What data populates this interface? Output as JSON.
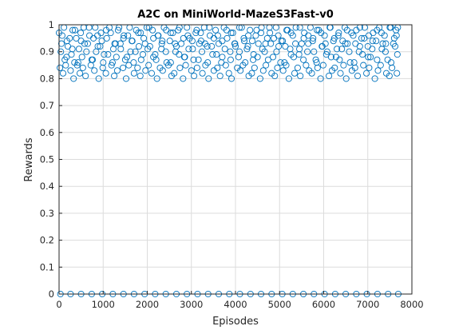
{
  "chart_data": {
    "type": "scatter",
    "title": "A2C on MiniWorld-MazeS3Fast-v0",
    "xlabel": "Episodes",
    "ylabel": "Rewards",
    "xlim": [
      0,
      8000
    ],
    "ylim": [
      0,
      1
    ],
    "xticks": [
      0,
      1000,
      2000,
      3000,
      4000,
      5000,
      6000,
      7000,
      8000
    ],
    "xtick_labels": [
      "0",
      "1000",
      "2000",
      "3000",
      "4000",
      "5000",
      "6000",
      "7000",
      "8000"
    ],
    "yticks": [
      0,
      0.1,
      0.2,
      0.3,
      0.4,
      0.5,
      0.6,
      0.7,
      0.8,
      0.9,
      1
    ],
    "ytick_labels": [
      "0",
      "0.1",
      "0.2",
      "0.3",
      "0.4",
      "0.5",
      "0.6",
      "0.7",
      "0.8",
      "0.9",
      "1"
    ],
    "grid": true,
    "marker": "circle-open",
    "color": "#0072bd",
    "series": [
      {
        "x": [
          0,
          55,
          110,
          170,
          240,
          300,
          360,
          430,
          500,
          560,
          620,
          690,
          760,
          820,
          880,
          950,
          1020,
          1080,
          1140,
          1210,
          1280,
          1340,
          1400,
          1470,
          1540,
          1600,
          1660,
          1730,
          1800,
          1860,
          1920,
          1990,
          2060,
          2120,
          2180,
          2250,
          2320,
          2380,
          2440,
          2510,
          2580,
          2640,
          2700,
          2770,
          2840,
          2900,
          2960,
          3030,
          3100,
          3160,
          3220,
          3290,
          3360,
          3420,
          3480,
          3550,
          3620,
          3680,
          3740,
          3810,
          3880,
          3940,
          4000,
          4070,
          4140,
          4200,
          4260,
          4330,
          4400,
          4460,
          4520,
          4590,
          4660,
          4720,
          4780,
          4850,
          4920,
          4980,
          5040,
          5110,
          5180,
          5240,
          5300,
          5370,
          5440,
          5500,
          5560,
          5630,
          5700,
          5760,
          5820,
          5890,
          5960,
          6020,
          6080,
          6150,
          6220,
          6280,
          6340,
          6410,
          6480,
          6540,
          6600,
          6670,
          6740,
          6800,
          6860,
          6930,
          7000,
          7060,
          7120,
          7190,
          7260,
          7320,
          7380,
          7450,
          7520,
          7580,
          7640,
          7680,
          20,
          90,
          150,
          260,
          330,
          410,
          470,
          540,
          600,
          720,
          800,
          900,
          990,
          1060,
          1190,
          1250,
          1320,
          1450,
          1520,
          1580,
          1700,
          1780,
          1840,
          1960,
          2030,
          2100,
          2220,
          2290,
          2350,
          2480,
          2550,
          2610,
          2740,
          2810,
          2870,
          3000,
          3060,
          3130,
          3250,
          3320,
          3390,
          3510,
          3590,
          3650,
          3780,
          3850,
          3910,
          4040,
          4110,
          4170,
          4300,
          4370,
          4430,
          4560,
          4630,
          4690,
          4820,
          4890,
          4950,
          5080,
          5150,
          5210,
          5340,
          5410,
          5470,
          5600,
          5670,
          5730,
          5860,
          5930,
          5990,
          6120,
          6190,
          6250,
          6380,
          6450,
          6510,
          6640,
          6710,
          6770,
          6900,
          6970,
          7030,
          7160,
          7230,
          7290,
          7420,
          7490,
          7550,
          7660,
          40,
          130,
          200,
          280,
          350,
          450,
          520,
          650,
          740,
          840,
          930,
          1000,
          1110,
          1230,
          1300,
          1390,
          1500,
          1620,
          1690,
          1810,
          1900,
          2010,
          2140,
          2200,
          2330,
          2420,
          2530,
          2660,
          2720,
          2850,
          2940,
          3050,
          3180,
          3240,
          3370,
          3460,
          3570,
          3700,
          3760,
          3890,
          3980,
          4090,
          4220,
          4280,
          4410,
          4500,
          4610,
          4740,
          4800,
          4930,
          5020,
          5130,
          5260,
          5320,
          5450,
          5540,
          5650,
          5780,
          5840,
          5970,
          6060,
          6170,
          6300,
          6360,
          6490,
          6580,
          6690,
          6820,
          6880,
          7010,
          7100,
          7210,
          7340,
          7400,
          7530,
          7620,
          7670,
          70,
          180,
          310,
          390,
          490,
          580,
          680,
          780,
          870,
          970,
          1070,
          1170,
          1260,
          1360,
          1460,
          1560,
          1650,
          1750,
          1850,
          1950,
          2040,
          2140,
          2240,
          2340,
          2430,
          2530,
          2630,
          2730,
          2820,
          2920,
          3020,
          3120,
          3210,
          3310,
          3410,
          3510,
          3600,
          3700,
          3800,
          3900,
          3990,
          4090,
          4190,
          4290,
          4380,
          4480,
          4580,
          4680,
          4770,
          4870,
          4970,
          5070,
          5160,
          5260,
          5360,
          5460,
          5550,
          5650,
          5750,
          5850,
          5940,
          6040,
          6140,
          6240,
          6330,
          6430,
          6530,
          6630,
          6720,
          6820,
          6920,
          7020,
          7110,
          7210,
          7310,
          7410,
          7500,
          7600,
          7650,
          30,
          260,
          500,
          740,
          980,
          1220,
          1460,
          1700,
          1940,
          2180,
          2420,
          2660,
          2900,
          3140,
          3380,
          3620,
          3860,
          4100,
          4340,
          4580,
          4820,
          5060,
          5300,
          5540,
          5780,
          6020,
          6260,
          6500,
          6740,
          6980,
          7220,
          7460,
          7690
        ],
        "y": [
          0.97,
          0.93,
          0.99,
          0.88,
          0.95,
          0.91,
          0.98,
          0.86,
          0.94,
          0.99,
          0.9,
          0.96,
          0.87,
          0.99,
          0.92,
          0.97,
          0.89,
          0.95,
          0.99,
          0.86,
          0.93,
          0.98,
          0.91,
          0.96,
          0.88,
          0.99,
          0.94,
          0.9,
          0.97,
          0.87,
          0.95,
          0.99,
          0.92,
          0.98,
          0.89,
          0.96,
          0.91,
          0.99,
          0.86,
          0.94,
          0.97,
          0.9,
          0.98,
          0.93,
          0.88,
          0.99,
          0.95,
          0.91,
          0.97,
          0.87,
          0.94,
          0.99,
          0.92,
          0.96,
          0.89,
          0.98,
          0.93,
          0.86,
          0.99,
          0.95,
          0.9,
          0.97,
          0.92,
          0.88,
          0.99,
          0.94,
          0.91,
          0.98,
          0.87,
          0.96,
          0.93,
          0.99,
          0.9,
          0.95,
          0.97,
          0.88,
          0.99,
          0.92,
          0.94,
          0.86,
          0.98,
          0.91,
          0.96,
          0.99,
          0.89,
          0.93,
          0.97,
          0.9,
          0.99,
          0.95,
          0.87,
          0.98,
          0.92,
          0.96,
          0.9,
          0.99,
          0.94,
          0.88,
          0.97,
          0.91,
          0.99,
          0.93,
          0.86,
          0.96,
          0.98,
          0.9,
          0.95,
          0.99,
          0.92,
          0.88,
          0.97,
          0.94,
          0.99,
          0.91,
          0.96,
          0.87,
          0.99,
          0.93,
          0.98,
          0.99,
          0.84,
          0.82,
          0.85,
          0.83,
          0.8,
          0.85,
          0.82,
          0.84,
          0.81,
          0.85,
          0.83,
          0.8,
          0.84,
          0.82,
          0.85,
          0.81,
          0.83,
          0.84,
          0.8,
          0.85,
          0.82,
          0.84,
          0.81,
          0.83,
          0.85,
          0.82,
          0.8,
          0.84,
          0.83,
          0.85,
          0.81,
          0.82,
          0.84,
          0.8,
          0.85,
          0.83,
          0.81,
          0.84,
          0.82,
          0.85,
          0.8,
          0.83,
          0.84,
          0.81,
          0.85,
          0.82,
          0.8,
          0.84,
          0.83,
          0.85,
          0.81,
          0.82,
          0.84,
          0.8,
          0.83,
          0.85,
          0.82,
          0.81,
          0.84,
          0.83,
          0.85,
          0.8,
          0.82,
          0.84,
          0.81,
          0.85,
          0.83,
          0.82,
          0.84,
          0.8,
          0.85,
          0.81,
          0.83,
          0.84,
          0.82,
          0.85,
          0.8,
          0.83,
          0.84,
          0.81,
          0.85,
          0.82,
          0.84,
          0.8,
          0.83,
          0.85,
          0.82,
          0.81,
          0.84,
          0.82,
          0.9,
          0.87,
          0.92,
          0.89,
          0.86,
          0.91,
          0.88,
          0.93,
          0.87,
          0.9,
          0.92,
          0.86,
          0.89,
          0.91,
          0.88,
          0.93,
          0.87,
          0.9,
          0.86,
          0.92,
          0.89,
          0.91,
          0.88,
          0.87,
          0.93,
          0.9,
          0.86,
          0.92,
          0.89,
          0.88,
          0.91,
          0.87,
          0.93,
          0.9,
          0.86,
          0.92,
          0.89,
          0.88,
          0.91,
          0.87,
          0.93,
          0.9,
          0.86,
          0.92,
          0.89,
          0.88,
          0.91,
          0.87,
          0.93,
          0.9,
          0.86,
          0.92,
          0.89,
          0.88,
          0.91,
          0.87,
          0.93,
          0.9,
          0.86,
          0.92,
          0.89,
          0.88,
          0.91,
          0.87,
          0.93,
          0.9,
          0.86,
          0.92,
          0.89,
          0.88,
          0.91,
          0.87,
          0.93,
          0.9,
          0.86,
          0.92,
          0.89,
          0.96,
          0.94,
          0.98,
          0.95,
          0.97,
          0.93,
          0.99,
          0.95,
          0.96,
          0.94,
          0.98,
          0.97,
          0.93,
          0.99,
          0.95,
          0.96,
          0.94,
          0.98,
          0.97,
          0.93,
          0.99,
          0.95,
          0.96,
          0.94,
          0.98,
          0.97,
          0.93,
          0.99,
          0.95,
          0.96,
          0.94,
          0.98,
          0.97,
          0.93,
          0.99,
          0.95,
          0.96,
          0.94,
          0.98,
          0.97,
          0.93,
          0.99,
          0.95,
          0.96,
          0.94,
          0.98,
          0.97,
          0.93,
          0.99,
          0.95,
          0.96,
          0.94,
          0.98,
          0.97,
          0.93,
          0.99,
          0.95,
          0.96,
          0.94,
          0.98,
          0.97,
          0.93,
          0.99,
          0.95,
          0.96,
          0.94,
          0.98,
          0.97,
          0.93,
          0.99,
          0.95,
          0.96,
          0.94,
          0.98,
          0.97,
          0.93,
          0.99,
          0.95,
          0.96,
          0,
          0,
          0,
          0,
          0,
          0,
          0,
          0,
          0,
          0,
          0,
          0,
          0,
          0,
          0,
          0,
          0,
          0,
          0,
          0,
          0,
          0,
          0,
          0,
          0,
          0,
          0,
          0,
          0,
          0,
          0,
          0,
          0
        ]
      }
    ]
  }
}
